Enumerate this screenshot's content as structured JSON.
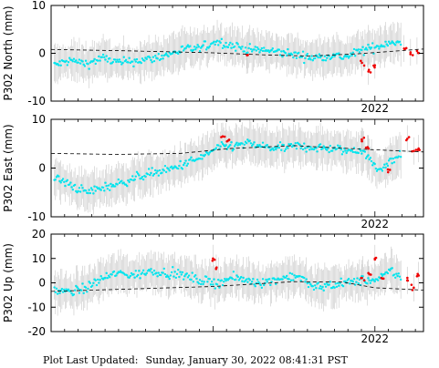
{
  "chart_data": [
    {
      "type": "scatter",
      "ylabel": "P302 North (mm)",
      "ylim": [
        -10,
        10
      ],
      "yticks": [
        -10,
        0,
        10
      ],
      "xtick_labels": [
        {
          "label": "2022",
          "x": 2022.0
        }
      ],
      "xlim": [
        2020.0,
        2022.3
      ],
      "grid": false,
      "series": [
        {
          "kind": "cyan-points-with-gray-error-bars",
          "points": [
            [
              2020.02,
              -2.5
            ],
            [
              2020.12,
              -1.5
            ],
            [
              2020.22,
              -2.2
            ],
            [
              2020.32,
              -1.0
            ],
            [
              2020.42,
              -2.0
            ],
            [
              2020.52,
              -1.6
            ],
            [
              2020.62,
              -1.2
            ],
            [
              2020.72,
              -0.3
            ],
            [
              2020.82,
              0.8
            ],
            [
              2020.92,
              1.0
            ],
            [
              2021.02,
              2.5
            ],
            [
              2021.12,
              1.6
            ],
            [
              2021.22,
              0.8
            ],
            [
              2021.32,
              0.6
            ],
            [
              2021.42,
              0.2
            ],
            [
              2021.52,
              -0.4
            ],
            [
              2021.62,
              -1.0
            ],
            [
              2021.72,
              -0.4
            ],
            [
              2021.82,
              -0.8
            ],
            [
              2021.92,
              0.6
            ],
            [
              2022.02,
              1.4
            ],
            [
              2022.1,
              2.5
            ],
            [
              2022.16,
              2.0
            ]
          ]
        },
        {
          "kind": "red-points",
          "points": [
            [
              2021.21,
              -0.4
            ],
            [
              2021.92,
              -2.0
            ],
            [
              2021.96,
              -3.8
            ],
            [
              2022.0,
              -2.5
            ],
            [
              2022.18,
              1.0
            ],
            [
              2022.22,
              0.2
            ],
            [
              2022.26,
              0.5
            ]
          ]
        },
        {
          "kind": "black-dashed-trend",
          "points": [
            [
              2020.0,
              0.8
            ],
            [
              2020.5,
              0.5
            ],
            [
              2021.0,
              0.1
            ],
            [
              2021.3,
              -0.3
            ],
            [
              2021.6,
              -0.6
            ],
            [
              2021.9,
              -0.1
            ],
            [
              2022.3,
              0.9
            ]
          ]
        }
      ]
    },
    {
      "type": "scatter",
      "ylabel": "P302 East (mm)",
      "ylim": [
        -10,
        10
      ],
      "yticks": [
        -10,
        0,
        10
      ],
      "xtick_labels": [
        {
          "label": "2022",
          "x": 2022.0
        }
      ],
      "xlim": [
        2020.0,
        2022.3
      ],
      "grid": false,
      "series": [
        {
          "kind": "cyan-points-with-gray-error-bars",
          "points": [
            [
              2020.02,
              -2.0
            ],
            [
              2020.12,
              -3.5
            ],
            [
              2020.22,
              -5.0
            ],
            [
              2020.32,
              -4.0
            ],
            [
              2020.42,
              -3.2
            ],
            [
              2020.52,
              -2.0
            ],
            [
              2020.62,
              -1.0
            ],
            [
              2020.72,
              -0.5
            ],
            [
              2020.82,
              0.8
            ],
            [
              2020.92,
              2.0
            ],
            [
              2021.02,
              4.0
            ],
            [
              2021.12,
              4.5
            ],
            [
              2021.22,
              5.0
            ],
            [
              2021.32,
              4.3
            ],
            [
              2021.42,
              4.0
            ],
            [
              2021.52,
              4.5
            ],
            [
              2021.62,
              4.2
            ],
            [
              2021.72,
              4.0
            ],
            [
              2021.82,
              3.5
            ],
            [
              2021.92,
              3.8
            ],
            [
              2022.02,
              -0.5
            ],
            [
              2022.1,
              1.5
            ],
            [
              2022.16,
              3.0
            ]
          ]
        },
        {
          "kind": "red-points",
          "points": [
            [
              2021.06,
              6.5
            ],
            [
              2021.1,
              5.8
            ],
            [
              2021.92,
              5.5
            ],
            [
              2021.96,
              4.0
            ],
            [
              2022.08,
              -0.3
            ],
            [
              2022.2,
              6.0
            ],
            [
              2022.24,
              3.5
            ],
            [
              2022.27,
              4.0
            ]
          ]
        },
        {
          "kind": "black-dashed-trend",
          "points": [
            [
              2020.0,
              3.0
            ],
            [
              2020.4,
              2.8
            ],
            [
              2020.8,
              3.0
            ],
            [
              2021.1,
              4.0
            ],
            [
              2021.5,
              4.6
            ],
            [
              2021.9,
              3.9
            ],
            [
              2022.3,
              3.3
            ]
          ]
        }
      ]
    },
    {
      "type": "scatter",
      "ylabel": "P302 Up (mm)",
      "ylim": [
        -20,
        20
      ],
      "yticks": [
        -20,
        -10,
        0,
        10,
        20
      ],
      "xtick_labels": [
        {
          "label": "2022",
          "x": 2022.0
        }
      ],
      "xlim": [
        2020.0,
        2022.3
      ],
      "grid": false,
      "series": [
        {
          "kind": "cyan-points-with-gray-error-bars",
          "points": [
            [
              2020.02,
              -3.0
            ],
            [
              2020.12,
              -4.0
            ],
            [
              2020.22,
              -2.0
            ],
            [
              2020.32,
              2.0
            ],
            [
              2020.42,
              4.0
            ],
            [
              2020.52,
              3.0
            ],
            [
              2020.62,
              5.0
            ],
            [
              2020.72,
              4.0
            ],
            [
              2020.82,
              3.0
            ],
            [
              2020.92,
              1.0
            ],
            [
              2021.02,
              0.0
            ],
            [
              2021.12,
              2.0
            ],
            [
              2021.22,
              1.0
            ],
            [
              2021.32,
              0.0
            ],
            [
              2021.42,
              2.0
            ],
            [
              2021.52,
              3.0
            ],
            [
              2021.62,
              -2.0
            ],
            [
              2021.72,
              -1.0
            ],
            [
              2021.82,
              0.0
            ],
            [
              2021.92,
              1.0
            ],
            [
              2022.02,
              1.0
            ],
            [
              2022.1,
              5.0
            ],
            [
              2022.16,
              2.0
            ]
          ]
        },
        {
          "kind": "red-points",
          "points": [
            [
              2021.0,
              10.0
            ],
            [
              2021.02,
              6.0
            ],
            [
              2021.92,
              2.0
            ],
            [
              2021.96,
              4.0
            ],
            [
              2022.0,
              10.0
            ],
            [
              2022.04,
              2.0
            ],
            [
              2022.2,
              1.0
            ],
            [
              2022.24,
              -2.0
            ],
            [
              2022.27,
              3.0
            ]
          ]
        },
        {
          "kind": "black-dashed-trend",
          "points": [
            [
              2020.0,
              -3.5
            ],
            [
              2020.5,
              -2.5
            ],
            [
              2021.0,
              -1.5
            ],
            [
              2021.5,
              0.5
            ],
            [
              2021.8,
              0.3
            ],
            [
              2022.0,
              -2.0
            ],
            [
              2022.3,
              -3.0
            ]
          ]
        }
      ]
    }
  ],
  "footer": {
    "label": "Plot Last Updated:",
    "value": "Sunday, January 30, 2022 08:41:31 PST"
  },
  "colors": {
    "cyan": "#00e5ee",
    "red": "#ee0000",
    "errorbar": "#c8c8c8",
    "trend": "#000000"
  }
}
